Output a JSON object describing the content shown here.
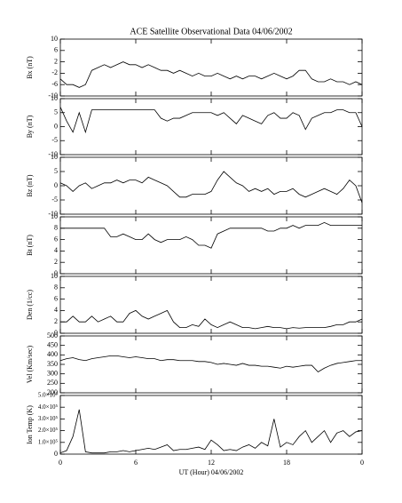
{
  "chart_data": [
    {
      "type": "line",
      "title": "ACE Satellite Observational Data   04/06/2002",
      "ylabel": "Bx (nT)",
      "color": "#000000",
      "xlim": [
        0,
        24
      ],
      "xticks": [
        0,
        6,
        12,
        18,
        {
          "value": 24,
          "label": "0"
        }
      ],
      "ylim": [
        -10,
        10
      ],
      "yticks": [
        -10,
        -6,
        -2,
        2,
        6,
        10
      ],
      "x": [
        0,
        0.5,
        1,
        1.5,
        2,
        2.5,
        3,
        3.5,
        4,
        4.5,
        5,
        5.5,
        6,
        6.5,
        7,
        7.5,
        8,
        8.5,
        9,
        9.5,
        10,
        10.5,
        11,
        11.5,
        12,
        12.5,
        13,
        13.5,
        14,
        14.5,
        15,
        15.5,
        16,
        16.5,
        17,
        17.5,
        18,
        18.5,
        19,
        19.5,
        20,
        20.5,
        21,
        21.5,
        22,
        22.5,
        23,
        23.5,
        24
      ],
      "values": [
        -4,
        -6,
        -6,
        -7,
        -6,
        -1,
        0,
        1,
        0,
        1,
        2,
        1,
        1,
        0,
        1,
        0,
        -1,
        -1,
        -2,
        -1,
        -2,
        -3,
        -2,
        -3,
        -3,
        -2,
        -3,
        -4,
        -3,
        -4,
        -3,
        -3,
        -4,
        -3,
        -2,
        -3,
        -4,
        -3,
        -1,
        -1,
        -4,
        -5,
        -5,
        -4,
        -5,
        -5,
        -6,
        -5,
        -6
      ]
    },
    {
      "type": "line",
      "ylabel": "By (nT)",
      "color": "#000000",
      "xlim": [
        0,
        24
      ],
      "xticks": [
        0,
        6,
        12,
        18,
        {
          "value": 24,
          "label": "0"
        }
      ],
      "ylim": [
        -10,
        10
      ],
      "yticks": [
        -10,
        -5,
        0,
        5,
        10
      ],
      "x": [
        0,
        0.5,
        1,
        1.5,
        2,
        2.5,
        3,
        3.5,
        4,
        4.5,
        5,
        5.5,
        6,
        6.5,
        7,
        7.5,
        8,
        8.5,
        9,
        9.5,
        10,
        10.5,
        11,
        11.5,
        12,
        12.5,
        13,
        13.5,
        14,
        14.5,
        15,
        15.5,
        16,
        16.5,
        17,
        17.5,
        18,
        18.5,
        19,
        19.5,
        20,
        20.5,
        21,
        21.5,
        22,
        22.5,
        23,
        23.5,
        24
      ],
      "values": [
        7,
        2,
        -2,
        5,
        -2,
        6,
        6,
        6,
        6,
        6,
        6,
        6,
        6,
        6,
        6,
        6,
        3,
        2,
        3,
        3,
        4,
        5,
        5,
        5,
        5,
        4,
        5,
        3,
        1,
        4,
        3,
        2,
        1,
        4,
        5,
        3,
        3,
        5,
        4,
        -1,
        3,
        4,
        5,
        5,
        6,
        6,
        5,
        5,
        0
      ]
    },
    {
      "type": "line",
      "ylabel": "Bz (nT)",
      "color": "#000000",
      "xlim": [
        0,
        24
      ],
      "xticks": [
        0,
        6,
        12,
        18,
        {
          "value": 24,
          "label": "0"
        }
      ],
      "ylim": [
        -10,
        10
      ],
      "yticks": [
        -10,
        -5,
        0,
        5,
        10
      ],
      "x": [
        0,
        0.5,
        1,
        1.5,
        2,
        2.5,
        3,
        3.5,
        4,
        4.5,
        5,
        5.5,
        6,
        6.5,
        7,
        7.5,
        8,
        8.5,
        9,
        9.5,
        10,
        10.5,
        11,
        11.5,
        12,
        12.5,
        13,
        13.5,
        14,
        14.5,
        15,
        15.5,
        16,
        16.5,
        17,
        17.5,
        18,
        18.5,
        19,
        19.5,
        20,
        20.5,
        21,
        21.5,
        22,
        22.5,
        23,
        23.5,
        24
      ],
      "values": [
        1,
        0,
        -2,
        0,
        1,
        -1,
        0,
        1,
        1,
        2,
        1,
        2,
        2,
        1,
        3,
        2,
        1,
        0,
        -2,
        -4,
        -4,
        -3,
        -3,
        -3,
        -2,
        2,
        5,
        3,
        1,
        0,
        -2,
        -1,
        -2,
        -1,
        -3,
        -2,
        -2,
        -1,
        -3,
        -4,
        -3,
        -2,
        -1,
        -2,
        -3,
        -1,
        2,
        0,
        -6
      ]
    },
    {
      "type": "line",
      "ylabel": "Bt (nT)",
      "color": "#000000",
      "xlim": [
        0,
        24
      ],
      "xticks": [
        0,
        6,
        12,
        18,
        {
          "value": 24,
          "label": "0"
        }
      ],
      "ylim": [
        0,
        10
      ],
      "yticks": [
        0,
        2,
        4,
        6,
        8,
        10
      ],
      "x": [
        0,
        0.5,
        1,
        1.5,
        2,
        2.5,
        3,
        3.5,
        4,
        4.5,
        5,
        5.5,
        6,
        6.5,
        7,
        7.5,
        8,
        8.5,
        9,
        9.5,
        10,
        10.5,
        11,
        11.5,
        12,
        12.5,
        13,
        13.5,
        14,
        14.5,
        15,
        15.5,
        16,
        16.5,
        17,
        17.5,
        18,
        18.5,
        19,
        19.5,
        20,
        20.5,
        21,
        21.5,
        22,
        22.5,
        23,
        23.5,
        24
      ],
      "values": [
        8,
        8,
        8,
        8,
        8,
        8,
        8,
        8,
        6.5,
        6.5,
        7,
        6.5,
        6,
        6,
        7,
        6,
        5.5,
        6,
        6,
        6,
        6.5,
        6,
        5,
        5,
        4.5,
        7,
        7.5,
        8,
        8,
        8,
        8,
        8,
        8,
        7.5,
        7.5,
        8,
        8,
        8.5,
        8,
        8.5,
        8.5,
        8.5,
        9,
        8.5,
        8.5,
        8.5,
        8.5,
        8.5,
        8.5
      ]
    },
    {
      "type": "line",
      "ylabel": "Den (1/cc)",
      "color": "#000000",
      "xlim": [
        0,
        24
      ],
      "xticks": [
        0,
        6,
        12,
        18,
        {
          "value": 24,
          "label": "0"
        }
      ],
      "ylim": [
        0,
        10
      ],
      "yticks": [
        0,
        2,
        4,
        6,
        8,
        10
      ],
      "x": [
        0,
        0.5,
        1,
        1.5,
        2,
        2.5,
        3,
        3.5,
        4,
        4.5,
        5,
        5.5,
        6,
        6.5,
        7,
        7.5,
        8,
        8.5,
        9,
        9.5,
        10,
        10.5,
        11,
        11.5,
        12,
        12.5,
        13,
        13.5,
        14,
        14.5,
        15,
        15.5,
        16,
        16.5,
        17,
        17.5,
        18,
        18.5,
        19,
        19.5,
        20,
        20.5,
        21,
        21.5,
        22,
        22.5,
        23,
        23.5,
        24
      ],
      "values": [
        2,
        2,
        3,
        2,
        2,
        3,
        2,
        2.5,
        3,
        2,
        2,
        3.5,
        4,
        3,
        2.5,
        3,
        3.5,
        4,
        2,
        1,
        1,
        1.5,
        1.2,
        2.5,
        1.5,
        1,
        1.5,
        2,
        1.5,
        1,
        1,
        0.8,
        1,
        1.2,
        1,
        1,
        0.8,
        1,
        0.9,
        1,
        1,
        1,
        1,
        1.2,
        1.5,
        1.5,
        2,
        2,
        2.5
      ]
    },
    {
      "type": "line",
      "ylabel": "Vel (Km/sec)",
      "color": "#000000",
      "xlim": [
        0,
        24
      ],
      "xticks": [
        0,
        6,
        12,
        18,
        {
          "value": 24,
          "label": "0"
        }
      ],
      "ylim": [
        200,
        500
      ],
      "yticks": [
        200,
        250,
        300,
        350,
        400,
        450,
        500
      ],
      "x": [
        0,
        0.5,
        1,
        1.5,
        2,
        2.5,
        3,
        3.5,
        4,
        4.5,
        5,
        5.5,
        6,
        6.5,
        7,
        7.5,
        8,
        8.5,
        9,
        9.5,
        10,
        10.5,
        11,
        11.5,
        12,
        12.5,
        13,
        13.5,
        14,
        14.5,
        15,
        15.5,
        16,
        16.5,
        17,
        17.5,
        18,
        18.5,
        19,
        19.5,
        20,
        20.5,
        21,
        21.5,
        22,
        22.5,
        23,
        23.5,
        24
      ],
      "values": [
        370,
        380,
        385,
        375,
        370,
        380,
        385,
        390,
        395,
        395,
        390,
        385,
        390,
        385,
        380,
        380,
        370,
        375,
        375,
        370,
        370,
        370,
        365,
        365,
        360,
        350,
        355,
        350,
        345,
        355,
        345,
        345,
        340,
        340,
        335,
        330,
        340,
        335,
        340,
        345,
        345,
        310,
        330,
        345,
        355,
        360,
        365,
        370,
        370
      ]
    },
    {
      "type": "line",
      "ylabel": "Ion Temp (K)",
      "xlabel": "UT (Hour)   04/06/2002",
      "color": "#000000",
      "xlim": [
        0,
        24
      ],
      "xticks": [
        0,
        6,
        12,
        18,
        {
          "value": 24,
          "label": "0"
        }
      ],
      "ylim": [
        0,
        500000
      ],
      "yticks": [
        0,
        {
          "value": 100000,
          "label": "1.0×10⁵"
        },
        {
          "value": 200000,
          "label": "2.0×10⁵"
        },
        {
          "value": 300000,
          "label": "3.0×10⁵"
        },
        {
          "value": 400000,
          "label": "4.0×10⁵"
        },
        {
          "value": 500000,
          "label": "5.0×10⁵"
        }
      ],
      "x": [
        0,
        0.5,
        1,
        1.5,
        2,
        2.5,
        3,
        3.5,
        4,
        4.5,
        5,
        5.5,
        6,
        6.5,
        7,
        7.5,
        8,
        8.5,
        9,
        9.5,
        10,
        10.5,
        11,
        11.5,
        12,
        12.5,
        13,
        13.5,
        14,
        14.5,
        15,
        15.5,
        16,
        16.5,
        17,
        17.5,
        18,
        18.5,
        19,
        19.5,
        20,
        20.5,
        21,
        21.5,
        22,
        22.5,
        23,
        23.5,
        24
      ],
      "values": [
        10000,
        30000,
        150000,
        380000,
        20000,
        10000,
        10000,
        10000,
        20000,
        20000,
        30000,
        20000,
        30000,
        40000,
        50000,
        40000,
        60000,
        80000,
        30000,
        40000,
        40000,
        50000,
        60000,
        40000,
        120000,
        80000,
        30000,
        40000,
        30000,
        60000,
        80000,
        50000,
        100000,
        70000,
        300000,
        60000,
        100000,
        80000,
        150000,
        200000,
        100000,
        150000,
        200000,
        100000,
        180000,
        200000,
        150000,
        190000,
        200000
      ]
    }
  ]
}
